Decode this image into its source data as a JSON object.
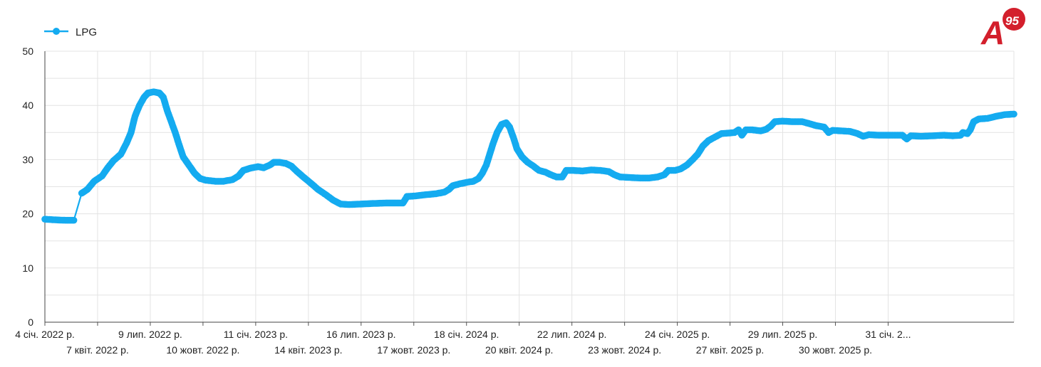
{
  "brand": {
    "logo_letter": "A",
    "logo_number": "95",
    "logo_color": "#d31f2c"
  },
  "chart_data": {
    "type": "line",
    "series": [
      {
        "name": "LPG",
        "color": "#14abf0",
        "points": [
          [
            "2022-01-04",
            19.0
          ],
          [
            "2022-01-20",
            18.9
          ],
          [
            "2022-02-10",
            18.8
          ],
          [
            "2022-02-24",
            18.8
          ],
          [
            "2022-03-10",
            23.8
          ],
          [
            "2022-03-20",
            24.5
          ],
          [
            "2022-04-01",
            26.0
          ],
          [
            "2022-04-15",
            27.0
          ],
          [
            "2022-04-25",
            28.5
          ],
          [
            "2022-05-05",
            29.8
          ],
          [
            "2022-05-18",
            31.0
          ],
          [
            "2022-05-28",
            33.0
          ],
          [
            "2022-06-05",
            35.0
          ],
          [
            "2022-06-12",
            38.0
          ],
          [
            "2022-06-20",
            40.0
          ],
          [
            "2022-06-28",
            41.5
          ],
          [
            "2022-07-05",
            42.3
          ],
          [
            "2022-07-15",
            42.5
          ],
          [
            "2022-07-25",
            42.3
          ],
          [
            "2022-08-01",
            41.5
          ],
          [
            "2022-08-08",
            39.0
          ],
          [
            "2022-08-15",
            37.0
          ],
          [
            "2022-08-22",
            35.0
          ],
          [
            "2022-08-28",
            33.0
          ],
          [
            "2022-09-05",
            30.5
          ],
          [
            "2022-09-15",
            29.0
          ],
          [
            "2022-09-25",
            27.5
          ],
          [
            "2022-10-05",
            26.5
          ],
          [
            "2022-10-15",
            26.2
          ],
          [
            "2022-11-01",
            26.0
          ],
          [
            "2022-11-15",
            26.0
          ],
          [
            "2022-12-01",
            26.3
          ],
          [
            "2022-12-12",
            27.0
          ],
          [
            "2022-12-20",
            28.0
          ],
          [
            "2023-01-01",
            28.4
          ],
          [
            "2023-01-15",
            28.7
          ],
          [
            "2023-01-25",
            28.5
          ],
          [
            "2023-02-05",
            29.0
          ],
          [
            "2023-02-12",
            29.5
          ],
          [
            "2023-02-22",
            29.5
          ],
          [
            "2023-03-05",
            29.3
          ],
          [
            "2023-03-15",
            28.8
          ],
          [
            "2023-03-25",
            27.8
          ],
          [
            "2023-04-05",
            26.8
          ],
          [
            "2023-04-20",
            25.5
          ],
          [
            "2023-05-01",
            24.5
          ],
          [
            "2023-05-15",
            23.5
          ],
          [
            "2023-05-28",
            22.5
          ],
          [
            "2023-06-10",
            21.8
          ],
          [
            "2023-06-25",
            21.7
          ],
          [
            "2023-07-15",
            21.8
          ],
          [
            "2023-08-05",
            21.9
          ],
          [
            "2023-09-01",
            22.0
          ],
          [
            "2023-09-28",
            22.0
          ],
          [
            "2023-10-01",
            22.5
          ],
          [
            "2023-10-05",
            23.2
          ],
          [
            "2023-10-20",
            23.3
          ],
          [
            "2023-11-05",
            23.5
          ],
          [
            "2023-11-25",
            23.7
          ],
          [
            "2023-12-10",
            24.0
          ],
          [
            "2023-12-18",
            24.5
          ],
          [
            "2023-12-25",
            25.2
          ],
          [
            "2024-01-05",
            25.5
          ],
          [
            "2024-01-18",
            25.8
          ],
          [
            "2024-01-30",
            26.0
          ],
          [
            "2024-02-08",
            26.5
          ],
          [
            "2024-02-15",
            27.5
          ],
          [
            "2024-02-22",
            29.0
          ],
          [
            "2024-02-28",
            31.0
          ],
          [
            "2024-03-05",
            33.0
          ],
          [
            "2024-03-12",
            35.0
          ],
          [
            "2024-03-20",
            36.5
          ],
          [
            "2024-03-28",
            36.8
          ],
          [
            "2024-04-03",
            36.0
          ],
          [
            "2024-04-10",
            34.0
          ],
          [
            "2024-04-16",
            32.0
          ],
          [
            "2024-04-25",
            30.5
          ],
          [
            "2024-05-05",
            29.5
          ],
          [
            "2024-05-15",
            28.8
          ],
          [
            "2024-05-25",
            28.0
          ],
          [
            "2024-06-05",
            27.7
          ],
          [
            "2024-06-15",
            27.2
          ],
          [
            "2024-06-25",
            26.8
          ],
          [
            "2024-07-05",
            26.8
          ],
          [
            "2024-07-12",
            28.0
          ],
          [
            "2024-07-25",
            28.0
          ],
          [
            "2024-08-10",
            27.9
          ],
          [
            "2024-08-25",
            28.1
          ],
          [
            "2024-09-10",
            28.0
          ],
          [
            "2024-09-25",
            27.8
          ],
          [
            "2024-10-05",
            27.2
          ],
          [
            "2024-10-15",
            26.8
          ],
          [
            "2024-11-01",
            26.7
          ],
          [
            "2024-11-20",
            26.6
          ],
          [
            "2024-12-05",
            26.6
          ],
          [
            "2024-12-20",
            26.8
          ],
          [
            "2025-01-01",
            27.2
          ],
          [
            "2025-01-08",
            28.0
          ],
          [
            "2025-01-20",
            28.0
          ],
          [
            "2025-01-30",
            28.3
          ],
          [
            "2025-02-10",
            29.0
          ],
          [
            "2025-02-20",
            30.0
          ],
          [
            "2025-03-01",
            31.0
          ],
          [
            "2025-03-10",
            32.5
          ],
          [
            "2025-03-20",
            33.5
          ],
          [
            "2025-04-01",
            34.2
          ],
          [
            "2025-04-12",
            34.8
          ],
          [
            "2025-04-25",
            34.9
          ],
          [
            "2025-05-05",
            35.0
          ],
          [
            "2025-05-12",
            35.5
          ],
          [
            "2025-05-18",
            34.5
          ],
          [
            "2025-05-25",
            35.5
          ],
          [
            "2025-06-05",
            35.5
          ],
          [
            "2025-06-20",
            35.3
          ],
          [
            "2025-06-30",
            35.6
          ],
          [
            "2025-07-08",
            36.2
          ],
          [
            "2025-07-15",
            37.0
          ],
          [
            "2025-07-28",
            37.1
          ],
          [
            "2025-08-15",
            37.0
          ],
          [
            "2025-09-01",
            37.0
          ],
          [
            "2025-09-12",
            36.7
          ],
          [
            "2025-09-25",
            36.3
          ],
          [
            "2025-10-10",
            36.0
          ],
          [
            "2025-10-18",
            35.0
          ],
          [
            "2025-10-25",
            35.4
          ],
          [
            "2025-11-10",
            35.3
          ],
          [
            "2025-11-25",
            35.2
          ],
          [
            "2025-12-08",
            34.8
          ],
          [
            "2025-12-18",
            34.3
          ],
          [
            "2025-12-28",
            34.6
          ],
          [
            "2026-01-15",
            34.5
          ],
          [
            "2026-02-05",
            34.5
          ],
          [
            "2026-02-25",
            34.5
          ],
          [
            "2026-03-05",
            33.8
          ],
          [
            "2026-03-12",
            34.4
          ],
          [
            "2026-03-30",
            34.3
          ],
          [
            "2026-04-20",
            34.4
          ],
          [
            "2026-05-10",
            34.5
          ],
          [
            "2026-05-25",
            34.4
          ],
          [
            "2026-06-08",
            34.5
          ],
          [
            "2026-06-12",
            35.0
          ],
          [
            "2026-06-20",
            34.8
          ],
          [
            "2026-06-25",
            35.5
          ],
          [
            "2026-07-01",
            37.0
          ],
          [
            "2026-07-10",
            37.5
          ],
          [
            "2026-07-25",
            37.6
          ],
          [
            "2026-08-10",
            38.0
          ],
          [
            "2026-08-25",
            38.3
          ],
          [
            "2026-09-10",
            38.4
          ]
        ]
      }
    ],
    "xlim": [
      "2022-01-04",
      "2026-09-10"
    ],
    "ylim": [
      0,
      50
    ],
    "y_ticks": [
      0,
      10,
      20,
      30,
      40,
      50
    ],
    "x_ticks": [
      {
        "date": "2022-01-04",
        "label": "4 січ. 2022 р.",
        "row": 0
      },
      {
        "date": "2022-04-07",
        "label": "7 квіт. 2022 р.",
        "row": 1
      },
      {
        "date": "2022-07-09",
        "label": "9 лип. 2022 р.",
        "row": 0
      },
      {
        "date": "2022-10-10",
        "label": "10 жовт. 2022 р.",
        "row": 1
      },
      {
        "date": "2023-01-11",
        "label": "11 січ. 2023 р.",
        "row": 0
      },
      {
        "date": "2023-04-14",
        "label": "14 квіт. 2023 р.",
        "row": 1
      },
      {
        "date": "2023-07-16",
        "label": "16 лип. 2023 р.",
        "row": 0
      },
      {
        "date": "2023-10-17",
        "label": "17 жовт. 2023 р.",
        "row": 1
      },
      {
        "date": "2024-01-18",
        "label": "18 січ. 2024 р.",
        "row": 0
      },
      {
        "date": "2024-04-20",
        "label": "20 квіт. 2024 р.",
        "row": 1
      },
      {
        "date": "2024-07-22",
        "label": "22 лип. 2024 р.",
        "row": 0
      },
      {
        "date": "2024-10-23",
        "label": "23 жовт. 2024 р.",
        "row": 1
      },
      {
        "date": "2025-01-24",
        "label": "24 січ. 2025 р.",
        "row": 0
      },
      {
        "date": "2025-04-27",
        "label": "27 квіт. 2025 р.",
        "row": 1
      },
      {
        "date": "2025-07-29",
        "label": "29 лип. 2025 р.",
        "row": 0
      },
      {
        "date": "2025-10-30",
        "label": "30 жовт. 2025 р.",
        "row": 1
      },
      {
        "date": "2026-01-31",
        "label": "31 січ. 2...",
        "row": 0
      }
    ],
    "grid": true,
    "legend_position": "top-left"
  }
}
